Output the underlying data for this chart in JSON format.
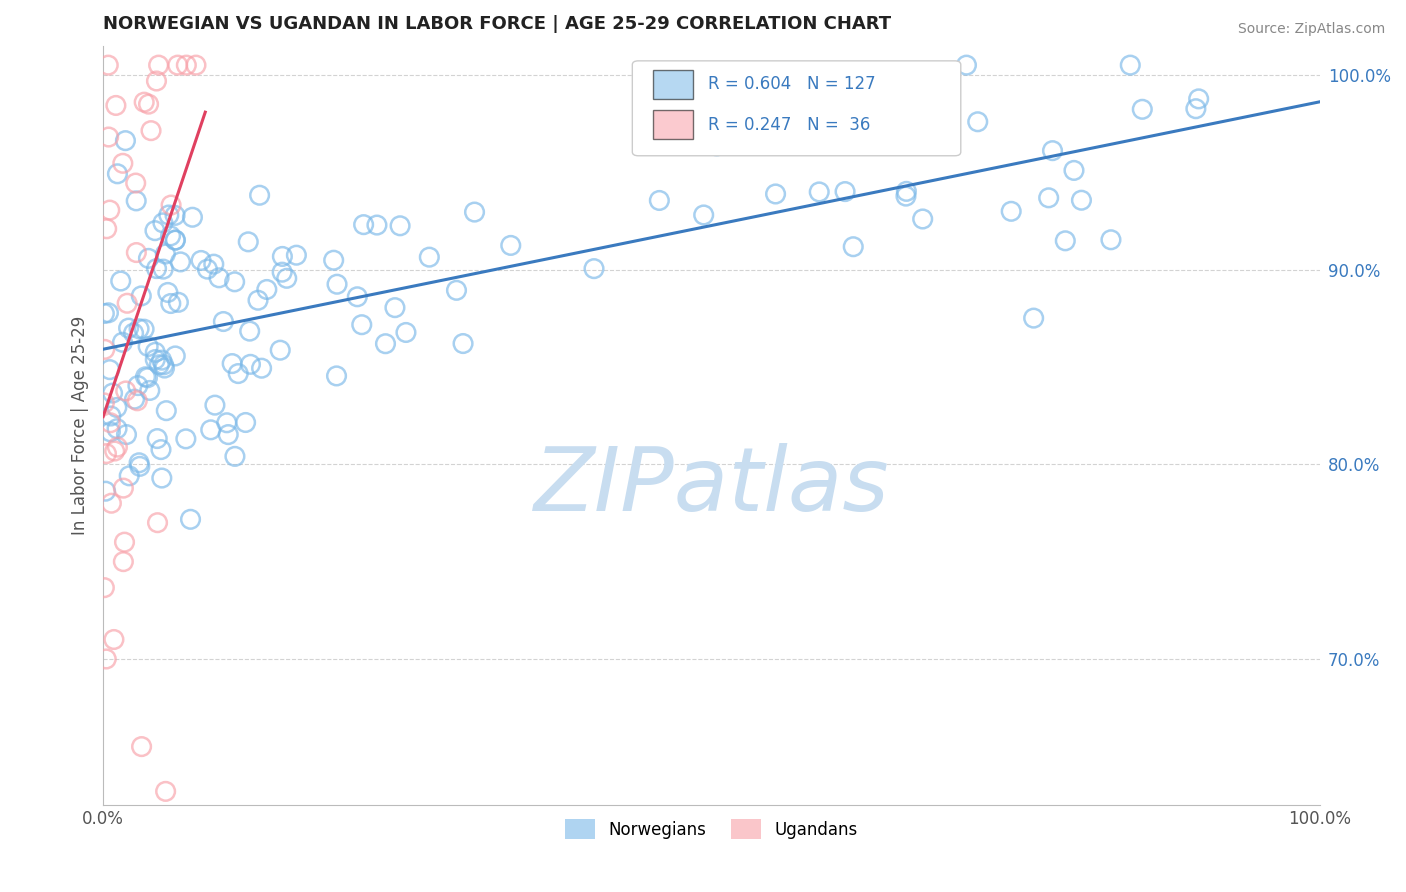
{
  "title": "NORWEGIAN VS UGANDAN IN LABOR FORCE | AGE 25-29 CORRELATION CHART",
  "source": "Source: ZipAtlas.com",
  "xlabel": "",
  "ylabel": "In Labor Force | Age 25-29",
  "xlim": [
    0.0,
    1.0
  ],
  "ylim": [
    0.625,
    1.015
  ],
  "yticks": [
    0.7,
    0.8,
    0.9,
    1.0
  ],
  "ytick_labels": [
    "70.0%",
    "80.0%",
    "90.0%",
    "100.0%"
  ],
  "xticks": [
    0.0,
    1.0
  ],
  "xtick_labels": [
    "0.0%",
    "100.0%"
  ],
  "r_norwegian": 0.604,
  "n_norwegian": 127,
  "r_ugandan": 0.247,
  "n_ugandan": 36,
  "norwegian_color": "#7ab8e8",
  "ugandan_color": "#f8a0a8",
  "norwegian_edge_color": "#7ab8e8",
  "ugandan_edge_color": "#f8a0a8",
  "norwegian_line_color": "#3a7abf",
  "ugandan_line_color": "#e04060",
  "watermark_color": "#c8ddf0",
  "legend_labels": [
    "Norwegians",
    "Ugandans"
  ],
  "background_color": "#ffffff",
  "grid_color": "#c8c8c8",
  "title_color": "#222222",
  "axis_label_color": "#555555",
  "tick_color": "#3a7abf"
}
